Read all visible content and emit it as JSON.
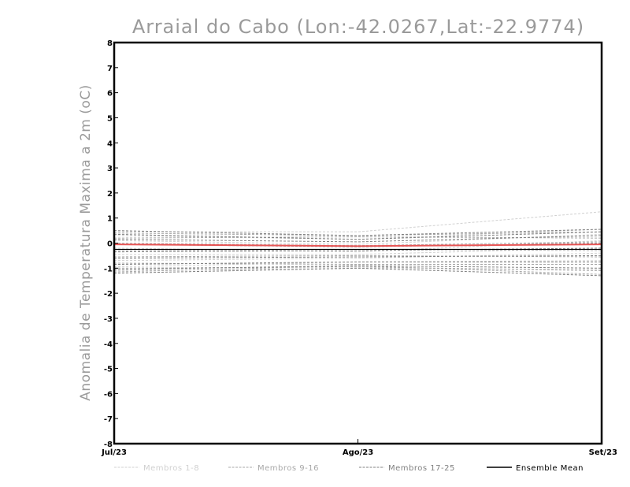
{
  "chart_data": {
    "type": "line",
    "title": "Arraial do Cabo (Lon:-42.0267,Lat:-22.9774)",
    "xlabel": "",
    "ylabel": "Anomalia de Temperatura Maxima a 2m (oC)",
    "categories": [
      "Jul/23",
      "Ago/23",
      "Set/23"
    ],
    "ylim": [
      -8,
      8
    ],
    "yticks": [
      "8",
      "7",
      "6",
      "5",
      "4",
      "3",
      "2",
      "1",
      "0",
      "-1",
      "-2",
      "-3",
      "-4",
      "-5",
      "-6",
      "-7",
      "-8"
    ],
    "grid": false,
    "legend_position": "bottom",
    "legend": [
      {
        "label": "Membros 1-8",
        "color": "#d0d0d0",
        "dash": true
      },
      {
        "label": "Membros 9-16",
        "color": "#a8a8a8",
        "dash": true
      },
      {
        "label": "Membros 17-25",
        "color": "#808080",
        "dash": true
      },
      {
        "label": "Ensemble Mean",
        "color": "#000000",
        "dash": false
      }
    ],
    "series": [
      {
        "group": 0,
        "values": [
          0.45,
          0.45,
          1.25
        ]
      },
      {
        "group": 0,
        "values": [
          0.3,
          0.15,
          0.55
        ]
      },
      {
        "group": 0,
        "values": [
          0.1,
          -0.05,
          0.35
        ]
      },
      {
        "group": 0,
        "values": [
          -0.2,
          -0.35,
          0.1
        ]
      },
      {
        "group": 0,
        "values": [
          -0.45,
          -0.45,
          -0.2
        ]
      },
      {
        "group": 0,
        "values": [
          -0.7,
          -0.6,
          -0.4
        ]
      },
      {
        "group": 0,
        "values": [
          -0.95,
          -0.75,
          -0.7
        ]
      },
      {
        "group": 0,
        "values": [
          -1.1,
          -1.0,
          -1.05
        ]
      },
      {
        "group": 1,
        "values": [
          0.4,
          0.3,
          0.45
        ]
      },
      {
        "group": 1,
        "values": [
          0.2,
          0.25,
          0.2
        ]
      },
      {
        "group": 1,
        "values": [
          0.0,
          -0.1,
          0.05
        ]
      },
      {
        "group": 1,
        "values": [
          -0.3,
          -0.25,
          -0.3
        ]
      },
      {
        "group": 1,
        "values": [
          -0.55,
          -0.5,
          -0.55
        ]
      },
      {
        "group": 1,
        "values": [
          -0.8,
          -0.85,
          -0.85
        ]
      },
      {
        "group": 1,
        "values": [
          -1.0,
          -0.95,
          -1.1
        ]
      },
      {
        "group": 1,
        "values": [
          -1.15,
          -0.9,
          -1.25
        ]
      },
      {
        "group": 2,
        "values": [
          0.5,
          0.3,
          0.55
        ]
      },
      {
        "group": 2,
        "values": [
          0.35,
          0.15,
          0.45
        ]
      },
      {
        "group": 2,
        "values": [
          0.15,
          0.05,
          0.3
        ]
      },
      {
        "group": 2,
        "values": [
          -0.05,
          -0.15,
          0.0
        ]
      },
      {
        "group": 2,
        "values": [
          -0.35,
          -0.3,
          -0.2
        ]
      },
      {
        "group": 2,
        "values": [
          -0.6,
          -0.55,
          -0.5
        ]
      },
      {
        "group": 2,
        "values": [
          -0.85,
          -0.75,
          -0.75
        ]
      },
      {
        "group": 2,
        "values": [
          -1.05,
          -0.9,
          -1.0
        ]
      },
      {
        "group": 2,
        "values": [
          -1.2,
          -1.0,
          -1.3
        ]
      },
      {
        "group": 3,
        "values": [
          -0.25,
          -0.25,
          -0.25
        ]
      },
      {
        "group": 4,
        "values": [
          -0.05,
          -0.12,
          -0.05
        ]
      }
    ],
    "colors": {
      "group0": "#d0d0d0",
      "group1": "#a8a8a8",
      "group2": "#808080",
      "mean": "#000000",
      "highlight": "#e85555"
    }
  }
}
